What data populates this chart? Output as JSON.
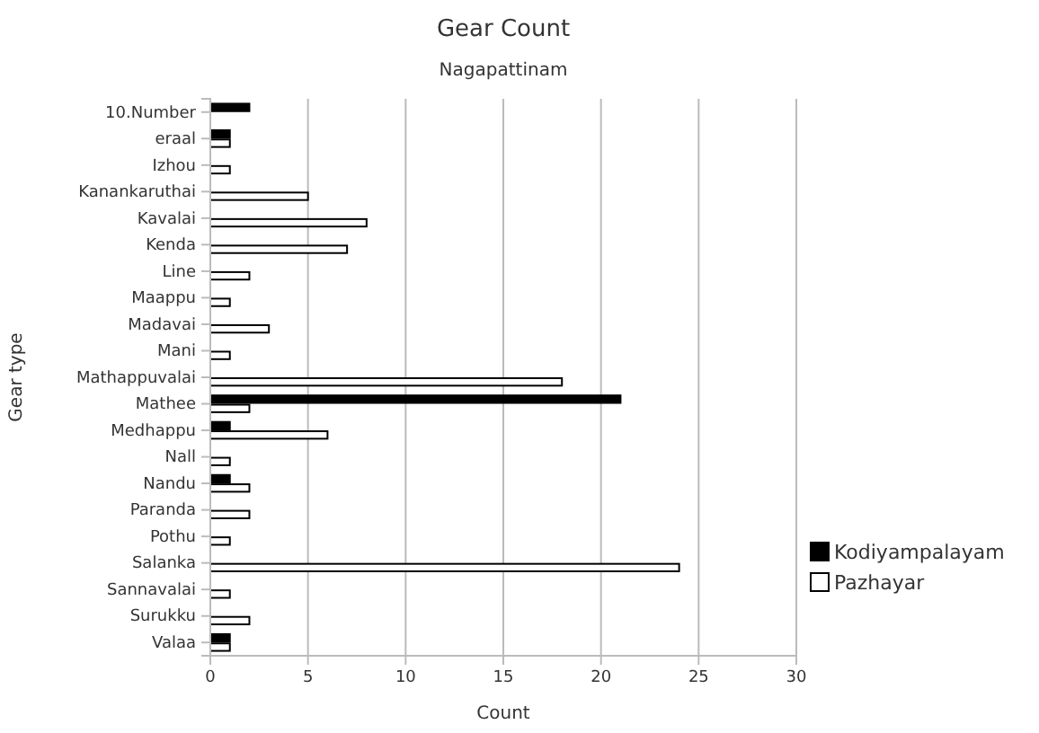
{
  "chart_data": {
    "type": "bar",
    "orientation": "horizontal",
    "title": "Gear Count",
    "subtitle": "Nagapattinam",
    "xlabel": "Count",
    "ylabel": "Gear type",
    "categories": [
      "10.Number",
      "eraal",
      "Izhou",
      "Kanankaruthai",
      "Kavalai",
      "Kenda",
      "Line",
      "Maappu",
      "Madavai",
      "Mani",
      "Mathappuvalai",
      "Mathee",
      "Medhappu",
      "Nall",
      "Nandu",
      "Paranda",
      "Pothu",
      "Salanka",
      "Sannavalai",
      "Surukku",
      "Valaa"
    ],
    "series": [
      {
        "name": "Kodiyampalayam",
        "color": "#000000",
        "values": [
          2,
          1,
          null,
          null,
          null,
          null,
          null,
          null,
          null,
          null,
          null,
          21,
          1,
          null,
          1,
          null,
          null,
          null,
          null,
          null,
          1
        ]
      },
      {
        "name": "Pazhayar",
        "color": "#ffffff",
        "values": [
          null,
          1,
          1,
          5,
          8,
          7,
          2,
          1,
          3,
          1,
          18,
          2,
          6,
          1,
          2,
          2,
          1,
          24,
          1,
          2,
          1
        ]
      }
    ],
    "xlim": [
      0,
      30
    ],
    "xticks": [
      0,
      5,
      10,
      15,
      20,
      25,
      30
    ],
    "grid": "x",
    "legend": "right"
  }
}
